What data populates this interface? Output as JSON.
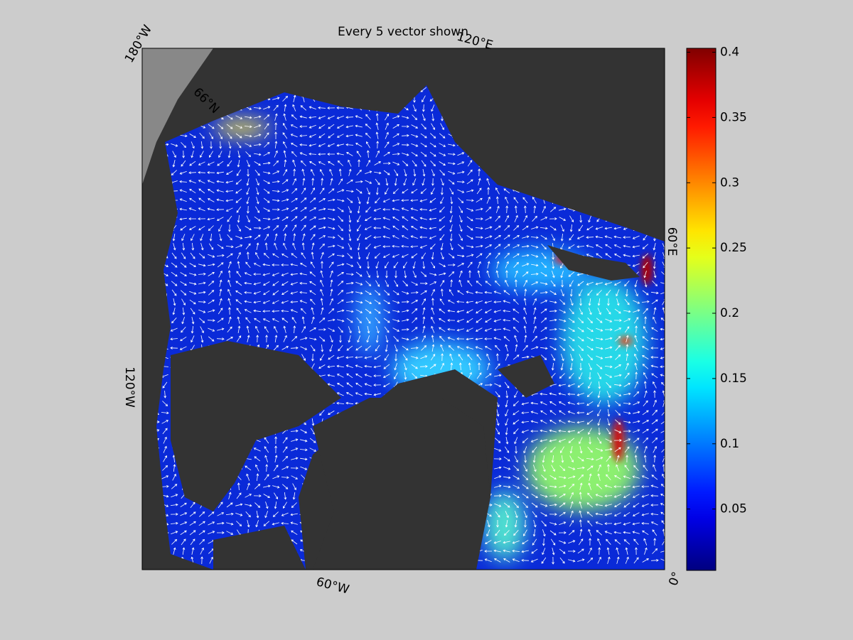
{
  "title": "Every 5 vector shown",
  "map_labels": [
    "180°W",
    "120°E",
    "60°E",
    "0°",
    "60°W",
    "120°W",
    "66°N"
  ],
  "colorbar": {
    "ylim": [
      0.003,
      0.403
    ],
    "yticks": [
      0.05,
      0.1,
      0.15,
      0.2,
      0.25,
      0.3,
      0.35,
      0.4
    ],
    "colormap": "jet"
  }
}
